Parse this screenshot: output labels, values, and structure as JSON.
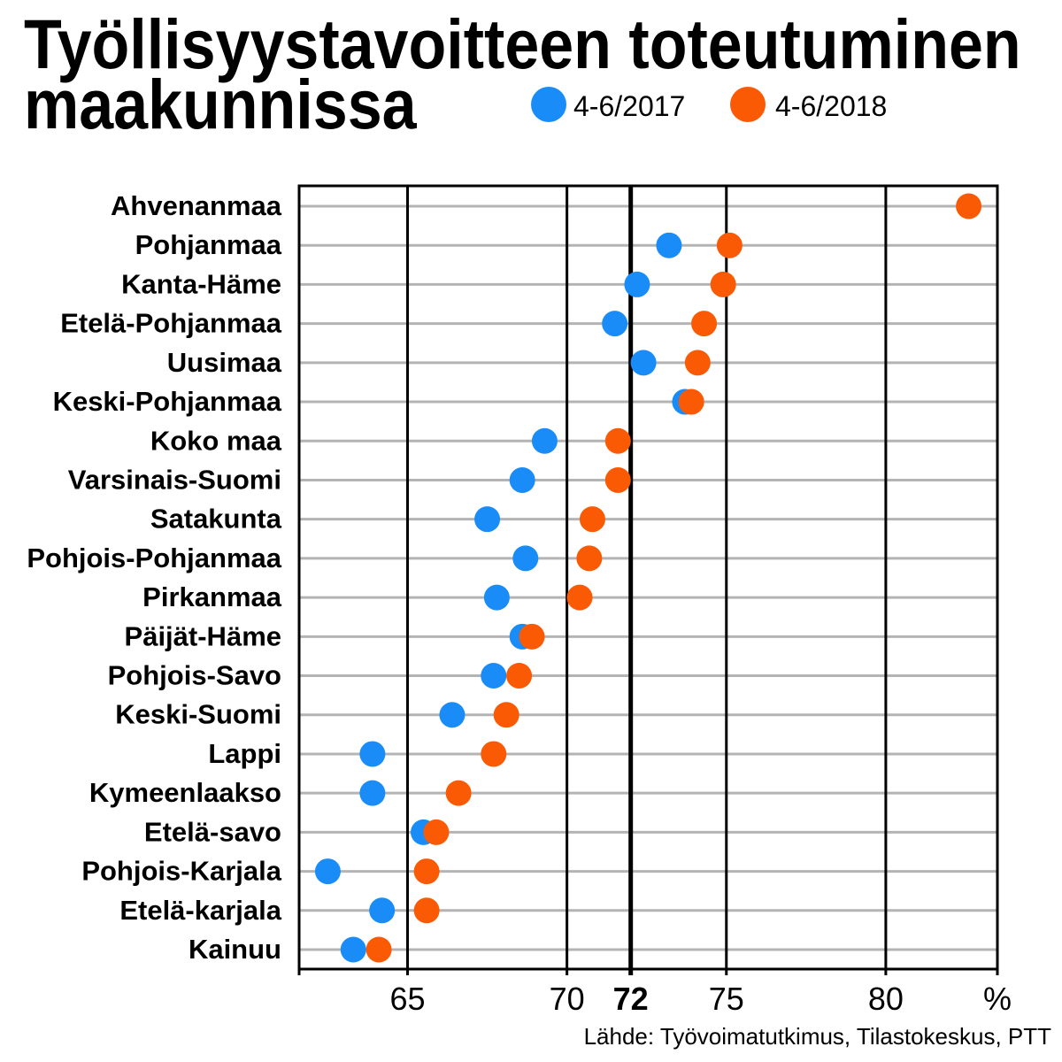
{
  "chart_data": {
    "type": "scatter",
    "title": "Työllisyystavoitteen toteutuminen maakunnissa",
    "categories": [
      "Ahvenanmaa",
      "Pohjanmaa",
      "Kanta-Häme",
      "Etelä-Pohjanmaa",
      "Uusimaa",
      "Keski-Pohjanmaa",
      "Koko maa",
      "Varsinais-Suomi",
      "Satakunta",
      "Pohjois-Pohjanmaa",
      "Pirkanmaa",
      "Päijät-Häme",
      "Pohjois-Savo",
      "Keski-Suomi",
      "Lappi",
      "Kymeenlaakso",
      "Etelä-savo",
      "Pohjois-Karjala",
      "Etelä-karjala",
      "Kainuu"
    ],
    "series": [
      {
        "name": "4-6/2017",
        "color": "#1a8cf7",
        "values": [
          null,
          73.2,
          72.2,
          71.5,
          72.4,
          73.7,
          69.3,
          68.6,
          67.5,
          68.7,
          67.8,
          68.6,
          67.7,
          66.4,
          63.9,
          63.9,
          65.5,
          62.5,
          64.2,
          63.3
        ]
      },
      {
        "name": "4-6/2018",
        "color": "#fb5a05",
        "values": [
          82.6,
          75.1,
          74.9,
          74.3,
          74.1,
          73.9,
          71.6,
          71.6,
          70.8,
          70.7,
          70.4,
          68.9,
          68.5,
          68.1,
          67.7,
          66.6,
          65.9,
          65.6,
          65.6,
          64.1
        ]
      }
    ],
    "xlabel": "%",
    "ylabel": "",
    "xlim": [
      61.6,
      83.5
    ],
    "xticks": [
      65,
      70,
      72,
      75,
      80
    ],
    "reference_line": 72,
    "grid": true,
    "legend_position": "top-right",
    "source": "Lähde: Työvoimatutkimus, Tilastokeskus, PTT"
  }
}
